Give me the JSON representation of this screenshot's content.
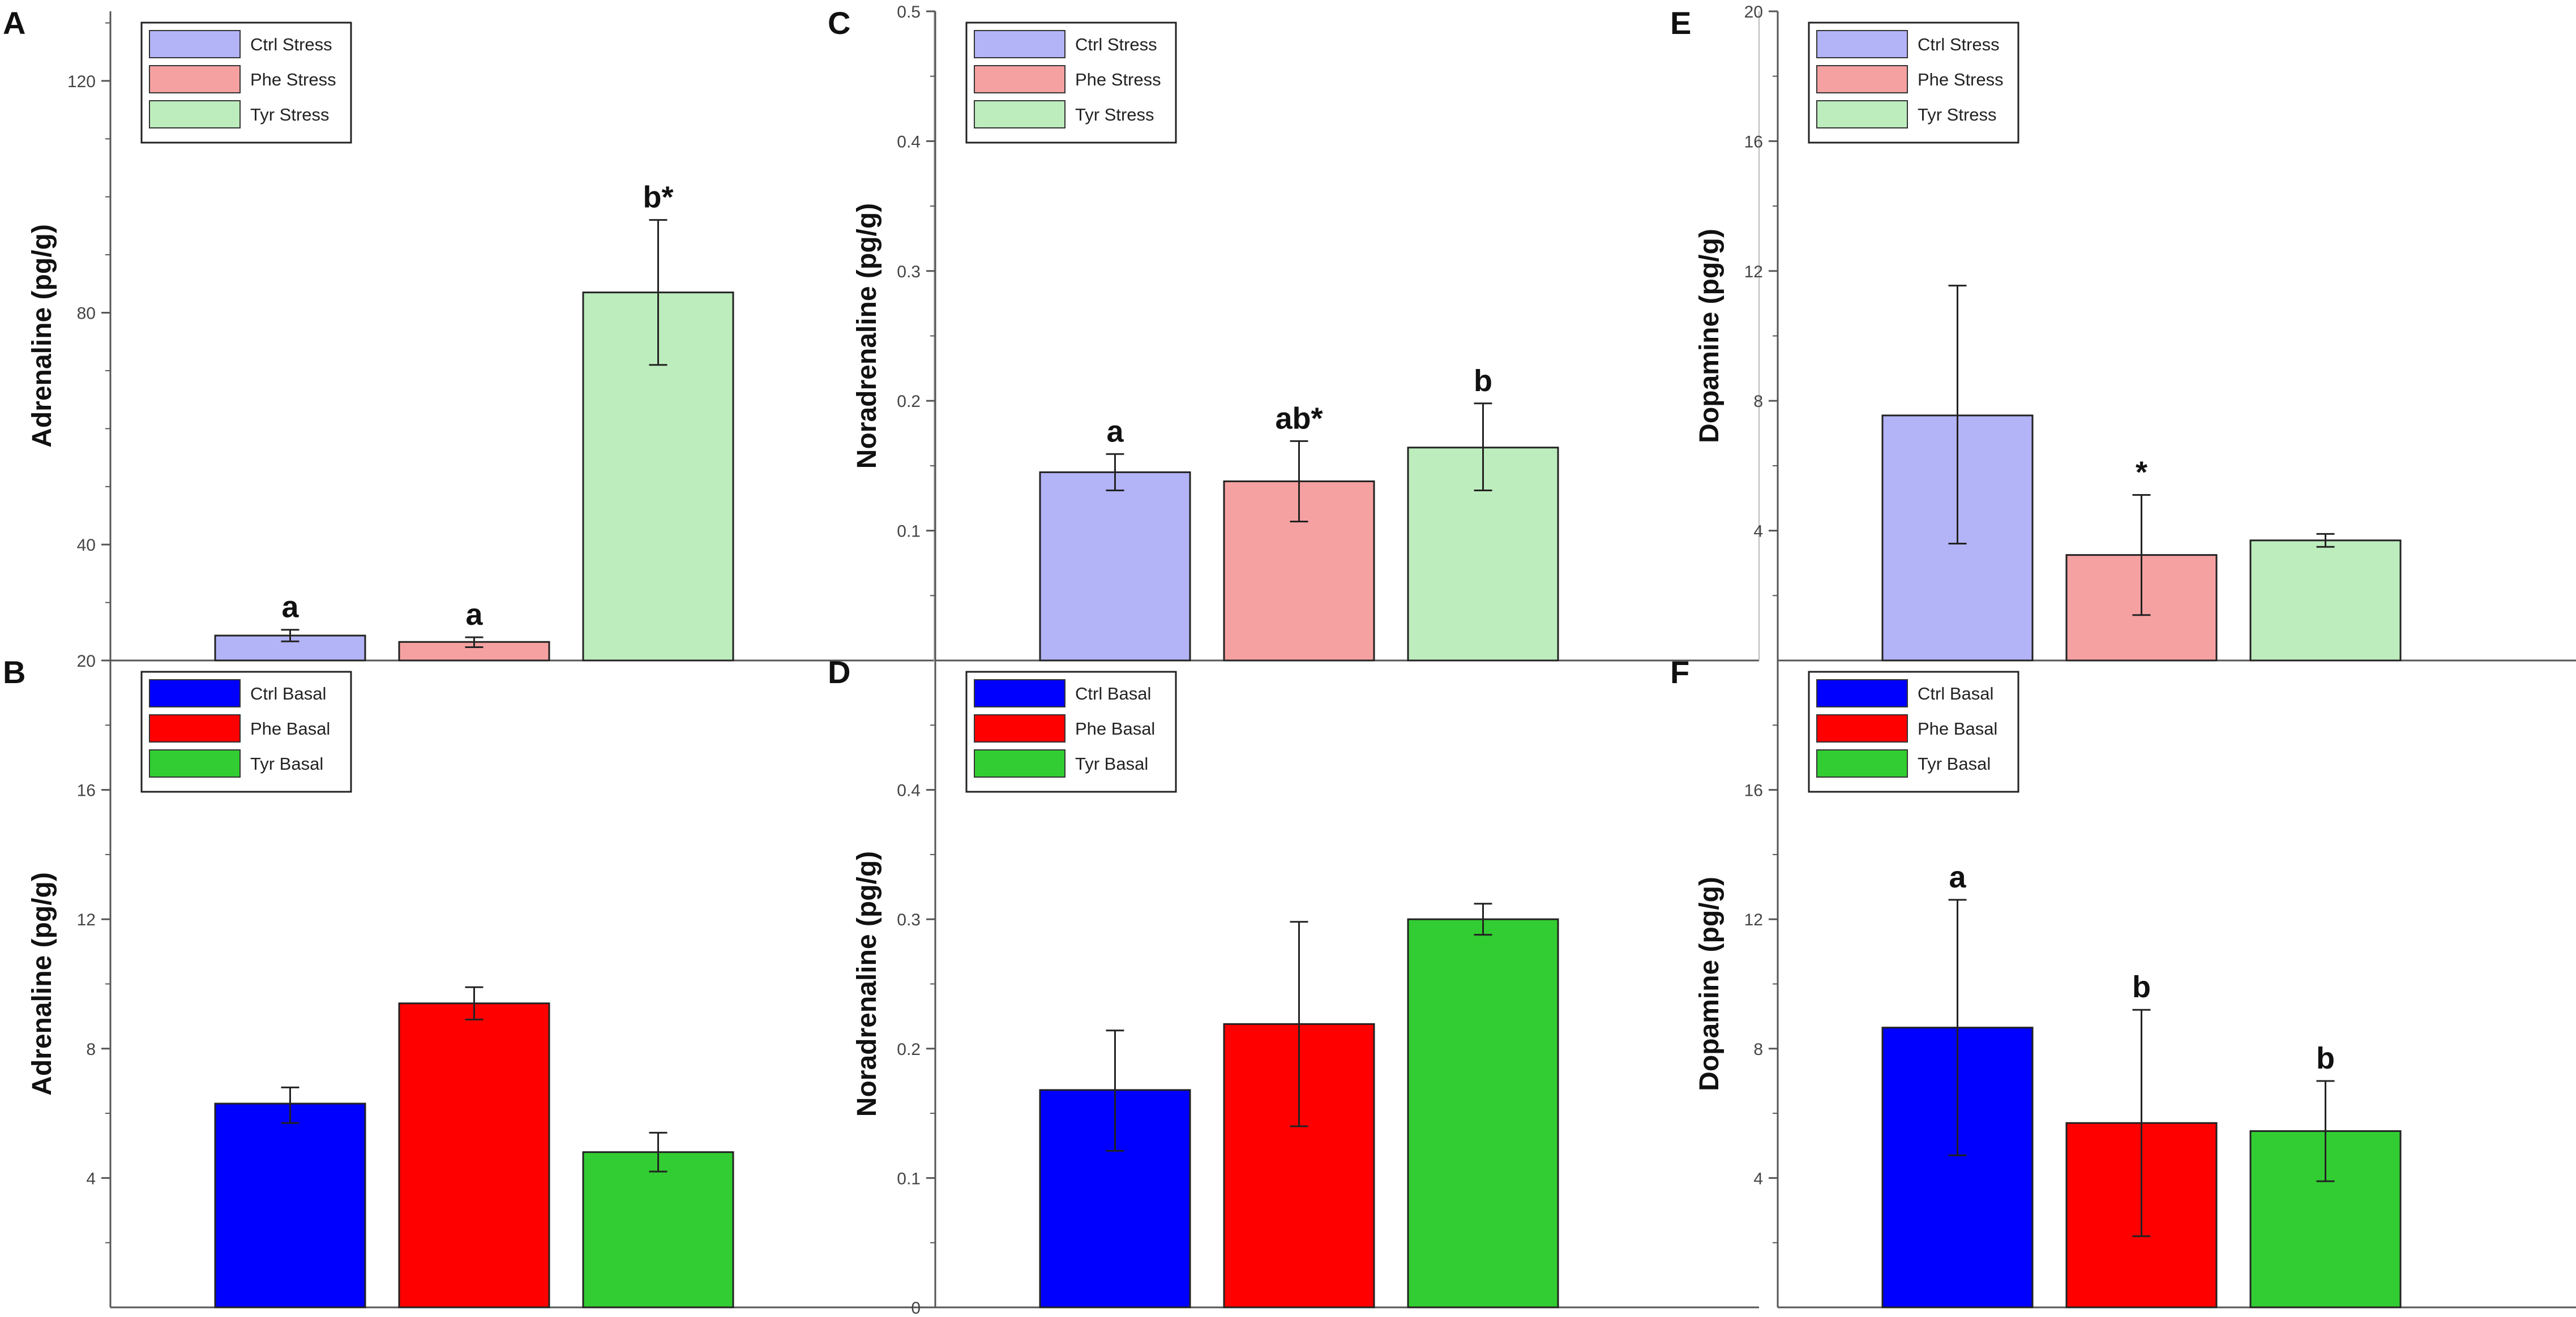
{
  "colors": {
    "stress": [
      "#b3b3f7",
      "#f6a1a1",
      "#bdedbd"
    ],
    "basal": [
      "#0000fe",
      "#fe0000",
      "#32cd32"
    ]
  },
  "chart_data": [
    {
      "id": "A",
      "type": "bar",
      "panel_label": "A",
      "ylabel": "Adrenaline (pg/g)",
      "ylim": [
        20,
        132
      ],
      "yticks": [
        20,
        40,
        80,
        120
      ],
      "minor_ticks": [
        30,
        50,
        60,
        70,
        90,
        100,
        110,
        130
      ],
      "categories": [
        "Ctrl Stress",
        "Phe Stress",
        "Tyr Stress"
      ],
      "values": [
        24.3,
        23.2,
        83.5
      ],
      "errors": [
        [
          23.3,
          25.3
        ],
        [
          22.3,
          24.0
        ],
        [
          71.0,
          96.0
        ]
      ],
      "annotations": [
        "a",
        "a",
        "b*"
      ],
      "legend": [
        "Ctrl Stress",
        "Phe Stress",
        "Tyr Stress"
      ],
      "legend_position": "top-left",
      "palette": "stress"
    },
    {
      "id": "B",
      "type": "bar",
      "panel_label": "B",
      "ylabel": "Adrenaline (pg/g)",
      "ylim": [
        0,
        20
      ],
      "yticks": [
        4,
        8,
        12,
        16
      ],
      "minor_ticks": [
        2,
        6,
        10,
        14,
        18
      ],
      "categories": [
        "Ctrl Basal",
        "Phe Basal",
        "Tyr Basal"
      ],
      "values": [
        6.3,
        9.4,
        4.8
      ],
      "errors": [
        [
          5.7,
          6.8
        ],
        [
          8.9,
          9.9
        ],
        [
          4.2,
          5.4
        ]
      ],
      "annotations": [
        "",
        "",
        ""
      ],
      "legend": [
        "Ctrl Basal",
        "Phe Basal",
        "Tyr Basal"
      ],
      "legend_position": "top-left",
      "palette": "basal"
    },
    {
      "id": "C",
      "type": "bar",
      "panel_label": "C",
      "ylabel": "Noradrenaline (pg/g)",
      "ylim": [
        0,
        0.5
      ],
      "yticks": [
        0.1,
        0.2,
        0.3,
        0.4,
        0.5
      ],
      "minor_ticks": [
        0.05,
        0.15,
        0.25,
        0.35,
        0.45
      ],
      "categories": [
        "Ctrl Stress",
        "Phe Stress",
        "Tyr Stress"
      ],
      "values": [
        0.145,
        0.138,
        0.164
      ],
      "errors": [
        [
          0.131,
          0.159
        ],
        [
          0.107,
          0.169
        ],
        [
          0.131,
          0.198
        ]
      ],
      "annotations": [
        "a",
        "ab*",
        "b"
      ],
      "legend": [
        "Ctrl Stress",
        "Phe Stress",
        "Tyr Stress"
      ],
      "legend_position": "top-left",
      "palette": "stress"
    },
    {
      "id": "D",
      "type": "bar",
      "panel_label": "D",
      "ylabel": "Noradrenaline (pg/g)",
      "ylim": [
        0,
        0.5
      ],
      "yticks": [
        0,
        0.1,
        0.2,
        0.3,
        0.4
      ],
      "minor_ticks": [
        0.05,
        0.15,
        0.25,
        0.35,
        0.45
      ],
      "categories": [
        "Ctrl Basal",
        "Phe Basal",
        "Tyr Basal"
      ],
      "values": [
        0.168,
        0.219,
        0.3
      ],
      "errors": [
        [
          0.121,
          0.214
        ],
        [
          0.14,
          0.298
        ],
        [
          0.288,
          0.312
        ]
      ],
      "annotations": [
        "",
        "",
        ""
      ],
      "legend": [
        "Ctrl Basal",
        "Phe Basal",
        "Tyr Basal"
      ],
      "legend_position": "top-left",
      "palette": "basal"
    },
    {
      "id": "E",
      "type": "bar",
      "panel_label": "E",
      "ylabel": "Dopamine (pg/g)",
      "ylim": [
        0,
        20
      ],
      "yticks": [
        4,
        8,
        12,
        16,
        20
      ],
      "minor_ticks": [
        2,
        6,
        10,
        14,
        18
      ],
      "categories": [
        "Ctrl Stress",
        "Phe Stress",
        "Tyr Stress"
      ],
      "values": [
        7.55,
        3.25,
        3.7
      ],
      "errors": [
        [
          3.6,
          11.55
        ],
        [
          1.4,
          5.1
        ],
        [
          3.5,
          3.9
        ]
      ],
      "annotations": [
        "",
        "*",
        ""
      ],
      "legend": [
        "Ctrl Stress",
        "Phe Stress",
        "Tyr Stress"
      ],
      "legend_position": "top-left",
      "palette": "stress"
    },
    {
      "id": "F",
      "type": "bar",
      "panel_label": "F",
      "ylabel": "Dopamine (pg/g)",
      "ylim": [
        0,
        20
      ],
      "yticks": [
        4,
        8,
        12,
        16
      ],
      "minor_ticks": [
        2,
        6,
        10,
        14,
        18
      ],
      "categories": [
        "Ctrl Basal",
        "Phe Basal",
        "Tyr Basal"
      ],
      "values": [
        8.65,
        5.7,
        5.45
      ],
      "errors": [
        [
          4.7,
          12.6
        ],
        [
          2.2,
          9.2
        ],
        [
          3.9,
          7.0
        ]
      ],
      "annotations": [
        "a",
        "b",
        "b"
      ],
      "legend": [
        "Ctrl Basal",
        "Phe Basal",
        "Tyr Basal"
      ],
      "legend_position": "top-left",
      "palette": "basal"
    }
  ]
}
